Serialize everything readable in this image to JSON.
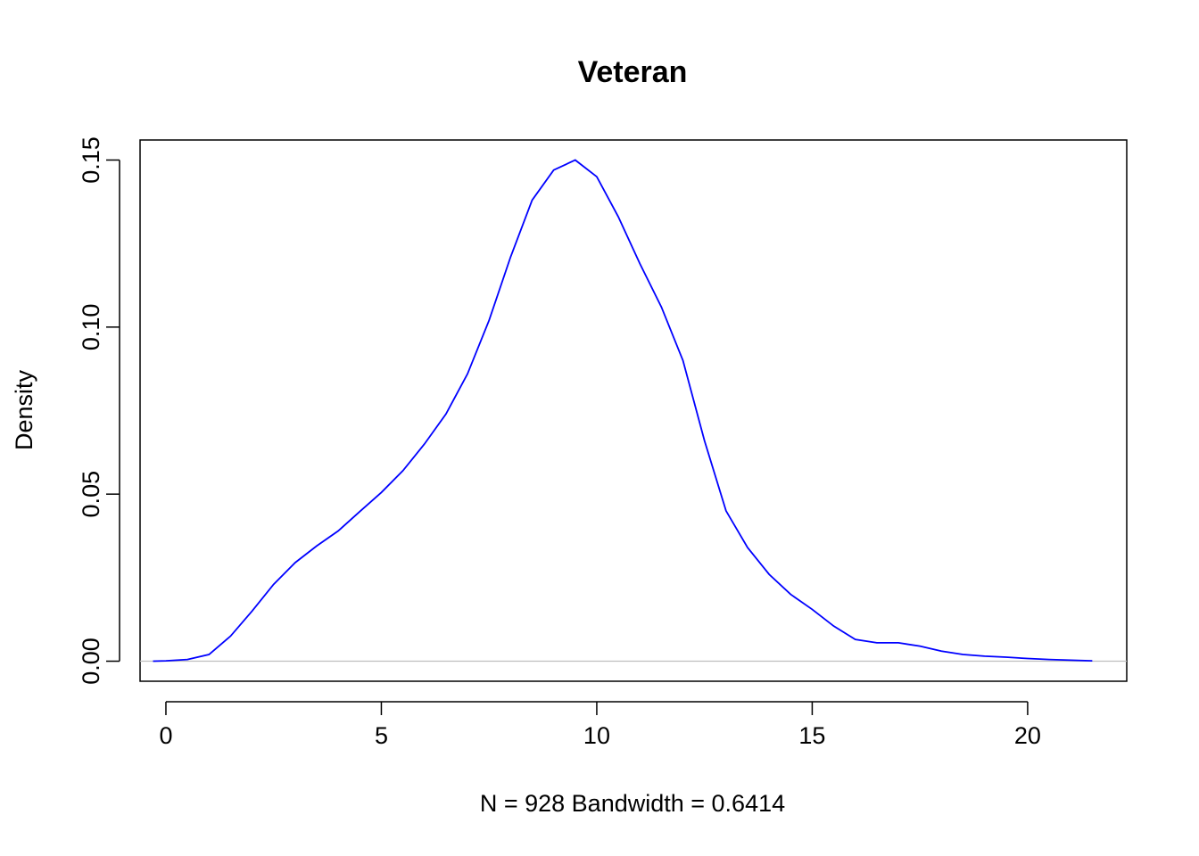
{
  "chart_data": {
    "type": "line",
    "title": "Veteran",
    "xlabel": "N = 928   Bandwidth = 0.6414",
    "ylabel": "Density",
    "xlim": [
      -0.6,
      22.3
    ],
    "ylim": [
      -0.006,
      0.156
    ],
    "x_ticks": [
      0,
      5,
      10,
      15,
      20
    ],
    "x_tick_labels": [
      "0",
      "5",
      "10",
      "15",
      "20"
    ],
    "y_ticks": [
      0.0,
      0.05,
      0.1,
      0.15
    ],
    "y_tick_labels": [
      "0.00",
      "0.05",
      "0.10",
      "0.15"
    ],
    "grid": false,
    "baseline": 0,
    "colors": {
      "line": "#0000ff",
      "baseline": "#bebebe",
      "frame": "#000000"
    },
    "series": [
      {
        "x": [
          -0.3,
          0.0,
          0.5,
          1.0,
          1.5,
          2.0,
          2.5,
          3.0,
          3.5,
          4.0,
          4.5,
          5.0,
          5.5,
          6.0,
          6.5,
          7.0,
          7.5,
          8.0,
          8.5,
          9.0,
          9.5,
          10.0,
          10.5,
          11.0,
          11.5,
          12.0,
          12.5,
          13.0,
          13.5,
          14.0,
          14.5,
          15.0,
          15.5,
          16.0,
          16.5,
          17.0,
          17.5,
          18.0,
          18.5,
          19.0,
          19.5,
          20.0,
          20.5,
          21.0,
          21.5
        ],
        "y": [
          0.0,
          0.0001,
          0.0005,
          0.002,
          0.0075,
          0.015,
          0.023,
          0.0295,
          0.0345,
          0.039,
          0.0448,
          0.0505,
          0.057,
          0.065,
          0.074,
          0.086,
          0.102,
          0.121,
          0.138,
          0.147,
          0.15,
          0.145,
          0.133,
          0.119,
          0.106,
          0.09,
          0.066,
          0.045,
          0.034,
          0.026,
          0.02,
          0.0155,
          0.0105,
          0.0065,
          0.0055,
          0.0055,
          0.0045,
          0.003,
          0.002,
          0.0015,
          0.0012,
          0.0008,
          0.0005,
          0.0003,
          0.0001
        ]
      }
    ]
  }
}
